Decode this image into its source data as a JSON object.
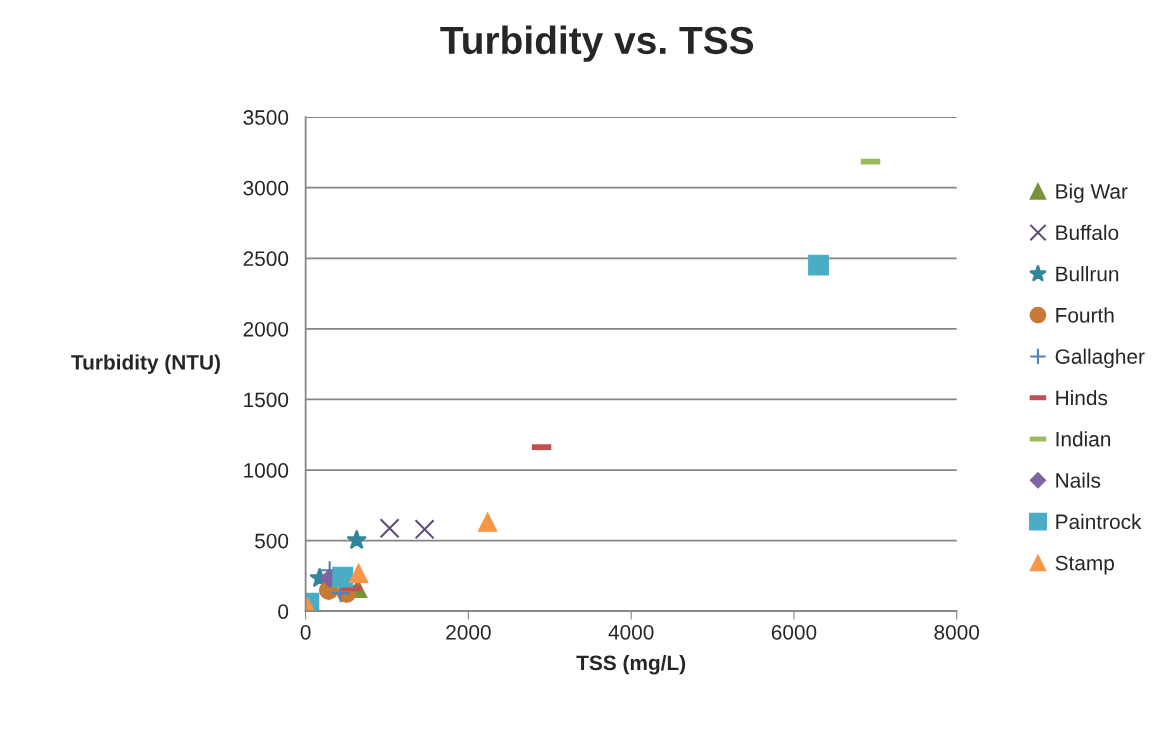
{
  "chart_data": {
    "type": "scatter",
    "title": "Turbidity vs. TSS",
    "xlabel": "TSS (mg/L)",
    "ylabel": "Turbidity (NTU)",
    "xlim": [
      0,
      8000
    ],
    "xticks": [
      0,
      2000,
      4000,
      6000,
      8000
    ],
    "ylim": [
      0,
      3500
    ],
    "yticks": [
      0,
      500,
      1000,
      1500,
      2000,
      2500,
      3000,
      3500
    ],
    "grid": "y",
    "legend": "right",
    "series": [
      {
        "name": "Big War",
        "color": "#77933c",
        "marker": "triangle",
        "x": [
          640
        ],
        "values": [
          163
        ]
      },
      {
        "name": "Buffalo",
        "color": "#604a7b",
        "marker": "x",
        "x": [
          1032,
          1462
        ],
        "values": [
          588,
          580
        ]
      },
      {
        "name": "Bullrun",
        "color": "#31859c",
        "marker": "asterisk",
        "x": [
          627,
          172
        ],
        "values": [
          503,
          234
        ]
      },
      {
        "name": "Fourth",
        "color": "#c77a36",
        "marker": "circle",
        "x": [
          283,
          503
        ],
        "values": [
          149,
          128
        ]
      },
      {
        "name": "Gallagher",
        "color": "#4f81bd",
        "marker": "plus",
        "x": [
          295,
          430
        ],
        "values": [
          290,
          128
        ]
      },
      {
        "name": "Hinds",
        "color": "#c0504d",
        "x": [
          2899,
          565
        ],
        "values": [
          1162,
          163
        ]
      },
      {
        "name": "Indian",
        "color": "#9bbb59",
        "x": [
          6941
        ],
        "values": [
          3185
        ]
      },
      {
        "name": "Nails",
        "color": "#8064a2",
        "marker": "diamond",
        "x": [
          295
        ],
        "values": [
          234
        ]
      },
      {
        "name": "Paintrock",
        "color": "#4bacc6",
        "marker": "square",
        "x": [
          6302,
          455,
          40
        ],
        "values": [
          2452,
          241,
          57
        ]
      },
      {
        "name": "Stamp",
        "color": "#f79646",
        "marker": "triangle",
        "x": [
          2236,
          651,
          25
        ],
        "values": [
          631,
          269,
          28
        ]
      }
    ]
  }
}
